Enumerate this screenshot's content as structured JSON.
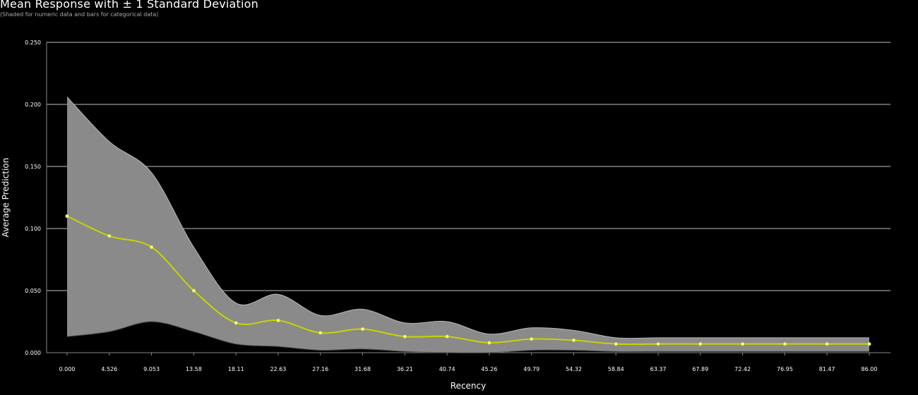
{
  "chart_data": {
    "type": "line",
    "title": "Mean Response with ± 1 Standard Deviation",
    "subtitle": "(Shaded for numeric data and bars for categorical data)",
    "xlabel": "Recency",
    "ylabel": "Average Prediction",
    "ylim": [
      0,
      0.25
    ],
    "yticks": [
      "0.000",
      "0.050",
      "0.100",
      "0.150",
      "0.200",
      "0.250"
    ],
    "ytick_values": [
      0,
      0.05,
      0.1,
      0.15,
      0.2,
      0.25
    ],
    "xtick_labels": [
      "0.000",
      "4.526",
      "9.053",
      "13.58",
      "18.11",
      "22.63",
      "27.16",
      "31.68",
      "36.21",
      "40.74",
      "45.26",
      "49.79",
      "54.32",
      "58.84",
      "63.37",
      "67.89",
      "72.42",
      "76.95",
      "81.47",
      "86.00"
    ],
    "x": [
      0,
      4.526,
      9.053,
      13.58,
      18.11,
      22.63,
      27.16,
      31.68,
      36.21,
      40.74,
      45.26,
      49.79,
      54.32,
      58.84,
      63.37,
      67.89,
      72.42,
      76.95,
      81.47,
      86.0
    ],
    "grid": true,
    "series": [
      {
        "values": [
          0.11,
          0.094,
          0.085,
          0.05,
          0.024,
          0.026,
          0.016,
          0.019,
          0.013,
          0.013,
          0.008,
          0.011,
          0.01,
          0.007,
          0.007,
          0.007,
          0.007,
          0.007,
          0.007,
          0.007
        ],
        "upper": [
          0.206,
          0.17,
          0.145,
          0.085,
          0.04,
          0.047,
          0.03,
          0.035,
          0.024,
          0.025,
          0.015,
          0.02,
          0.018,
          0.012,
          0.012,
          0.012,
          0.012,
          0.012,
          0.012,
          0.012
        ],
        "lower": [
          0.013,
          0.017,
          0.025,
          0.017,
          0.007,
          0.005,
          0.002,
          0.003,
          0.001,
          0.0,
          0.0,
          0.002,
          0.002,
          0.001,
          0.001,
          0.001,
          0.001,
          0.001,
          0.001,
          0.001
        ]
      }
    ],
    "colors": {
      "line": "#c8d400",
      "marker": "#f5f7a0",
      "band": "#8a8a8a",
      "band_edge": "#b8b8b8",
      "grid": "#ffffff",
      "background": "#000000"
    }
  }
}
